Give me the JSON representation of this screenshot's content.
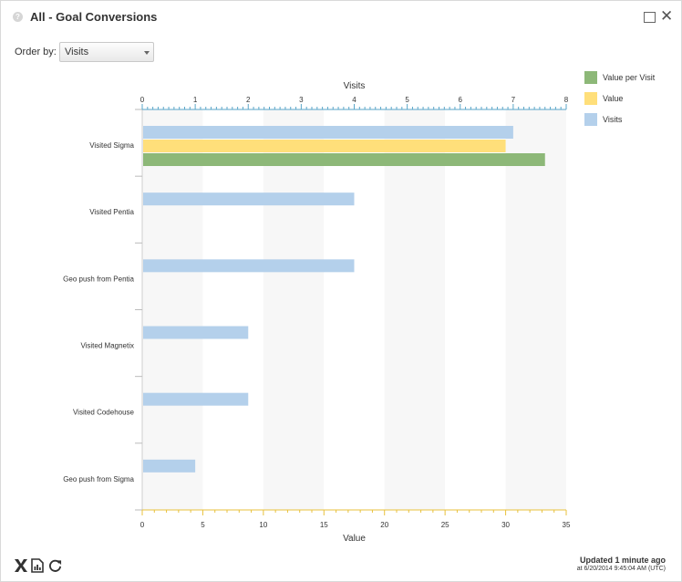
{
  "header": {
    "title": "All - Goal Conversions",
    "help_icon": "question-icon",
    "help_glyph": "?",
    "maximize_icon": "maximize-icon",
    "close_icon": "close-icon",
    "close_glyph": "✕"
  },
  "controls": {
    "order_label": "Order by:",
    "order_value": "Visits",
    "order_icon": "chevron-down-icon"
  },
  "chart_data": {
    "type": "bar",
    "orientation": "horizontal",
    "categories": [
      "Visited Sigma",
      "Visited Pentia",
      "Geo push from Pentia",
      "Visited Magnetix",
      "Visited Codehouse",
      "Geo push from Sigma"
    ],
    "series": [
      {
        "name": "Visits",
        "axis": "top",
        "color": "#b4d0eb",
        "values": [
          7,
          4,
          4,
          2,
          2,
          1
        ]
      },
      {
        "name": "Value",
        "axis": "bottom",
        "color": "#ffdf7a",
        "values": [
          30,
          0,
          0,
          0,
          0,
          0
        ]
      },
      {
        "name": "Value per Visit",
        "axis": "top",
        "color": "#8db878",
        "values": [
          7.6,
          0,
          0,
          0,
          0,
          0
        ]
      }
    ],
    "top_axis": {
      "label": "Visits",
      "range": [
        0,
        8
      ],
      "ticks": [
        "0",
        "1",
        "2",
        "3",
        "4",
        "5",
        "6",
        "7",
        "8"
      ],
      "color": "#5aa6c8"
    },
    "bottom_axis": {
      "label": "Value",
      "range": [
        0,
        35
      ],
      "ticks": [
        "0",
        "5",
        "10",
        "15",
        "20",
        "25",
        "30",
        "35"
      ],
      "color": "#e8c13c"
    },
    "legend": {
      "position": "top-right",
      "entries": [
        "Value per Visit",
        "Value",
        "Visits"
      ]
    },
    "grid": "alternating vertical bands"
  },
  "footer": {
    "icons": [
      "excel-icon",
      "report-icon",
      "refresh-icon"
    ],
    "updated": "Updated 1 minute ago",
    "updated_at": "at 6/20/2014 9:45:04 AM (UTC)"
  }
}
